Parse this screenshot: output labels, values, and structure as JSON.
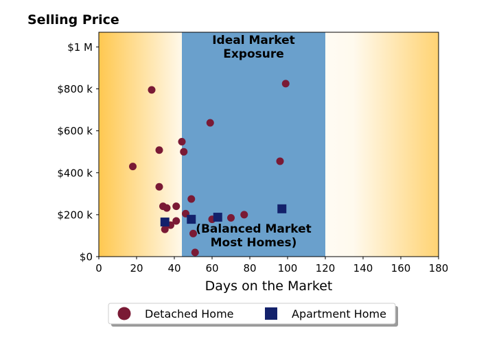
{
  "chart_data": {
    "type": "scatter",
    "title": "Selling Price",
    "xlabel": "Days on the Market",
    "ylabel": "",
    "xlim": [
      0,
      180
    ],
    "ylim": [
      0,
      1070000
    ],
    "xticks": [
      0,
      20,
      40,
      60,
      80,
      100,
      120,
      140,
      160,
      180
    ],
    "xtick_labels": [
      "0",
      "20",
      "40",
      "60",
      "80",
      "100",
      "120",
      "140",
      "160",
      "180"
    ],
    "yticks": [
      0,
      200000,
      400000,
      600000,
      800000,
      1000000
    ],
    "ytick_labels": [
      "$0",
      "$200 k",
      "$400 k",
      "$600 k",
      "$800 k",
      "$1 M"
    ],
    "grid": false,
    "legend_position": "bottom-center",
    "background_gradient_color": "#ffcc55",
    "ideal_band": {
      "x_range": [
        44,
        120
      ],
      "color": "#6aa0cc",
      "label_top": "Ideal Market\nExposure",
      "label_bottom": "(Balanced Market\nMost Homes)"
    },
    "series": [
      {
        "name": "Detached Home",
        "marker": "circle",
        "color": "#7a1a35",
        "points": [
          [
            18,
            430000
          ],
          [
            28,
            795000
          ],
          [
            32,
            508000
          ],
          [
            32,
            333000
          ],
          [
            34,
            240000
          ],
          [
            35,
            130000
          ],
          [
            36,
            232000
          ],
          [
            38,
            150000
          ],
          [
            41,
            240000
          ],
          [
            41,
            170000
          ],
          [
            44,
            548000
          ],
          [
            45,
            500000
          ],
          [
            46,
            205000
          ],
          [
            49,
            275000
          ],
          [
            50,
            110000
          ],
          [
            51,
            20000
          ],
          [
            59,
            638000
          ],
          [
            60,
            178000
          ],
          [
            70,
            185000
          ],
          [
            77,
            200000
          ],
          [
            96,
            455000
          ],
          [
            99,
            825000
          ]
        ]
      },
      {
        "name": "Apartment Home",
        "marker": "square",
        "color": "#13216b",
        "points": [
          [
            35,
            165000
          ],
          [
            49,
            178000
          ],
          [
            63,
            188000
          ],
          [
            97,
            228000
          ]
        ]
      }
    ]
  }
}
